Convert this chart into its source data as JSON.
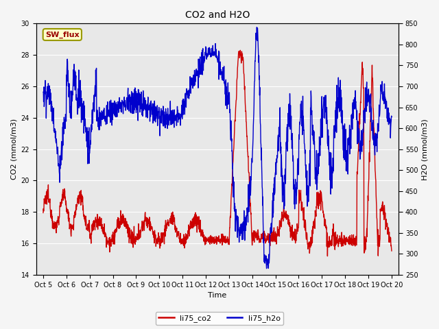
{
  "title": "CO2 and H2O",
  "xlabel": "Time",
  "ylabel_left": "CO2 (mmol/m3)",
  "ylabel_right": "H2O (mmol/m3)",
  "ylim_left": [
    14,
    30
  ],
  "ylim_right": [
    250,
    850
  ],
  "yticks_left": [
    14,
    16,
    18,
    20,
    22,
    24,
    26,
    28,
    30
  ],
  "yticks_right": [
    250,
    300,
    350,
    400,
    450,
    500,
    550,
    600,
    650,
    700,
    750,
    800,
    850
  ],
  "xtick_labels": [
    "Oct 5",
    "Oct 6",
    "Oct 7",
    "Oct 8",
    "Oct 9",
    "Oct 10",
    "Oct 11",
    "Oct 12",
    "Oct 13",
    "Oct 14",
    "Oct 15",
    "Oct 16",
    "Oct 17",
    "Oct 18",
    "Oct 19",
    "Oct 20"
  ],
  "color_co2": "#cc0000",
  "color_h2o": "#0000cc",
  "line_width": 1.0,
  "legend_labels": [
    "li75_co2",
    "li75_h2o"
  ],
  "annotation_text": "SW_flux",
  "annotation_color": "#990000",
  "annotation_bbox_facecolor": "#ffffcc",
  "annotation_bbox_edgecolor": "#999900",
  "plot_bg_color": "#e8e8e8",
  "fig_bg_color": "#f5f5f5",
  "grid_color": "#ffffff",
  "title_fontsize": 10,
  "axis_fontsize": 8,
  "tick_fontsize": 7,
  "legend_fontsize": 8
}
